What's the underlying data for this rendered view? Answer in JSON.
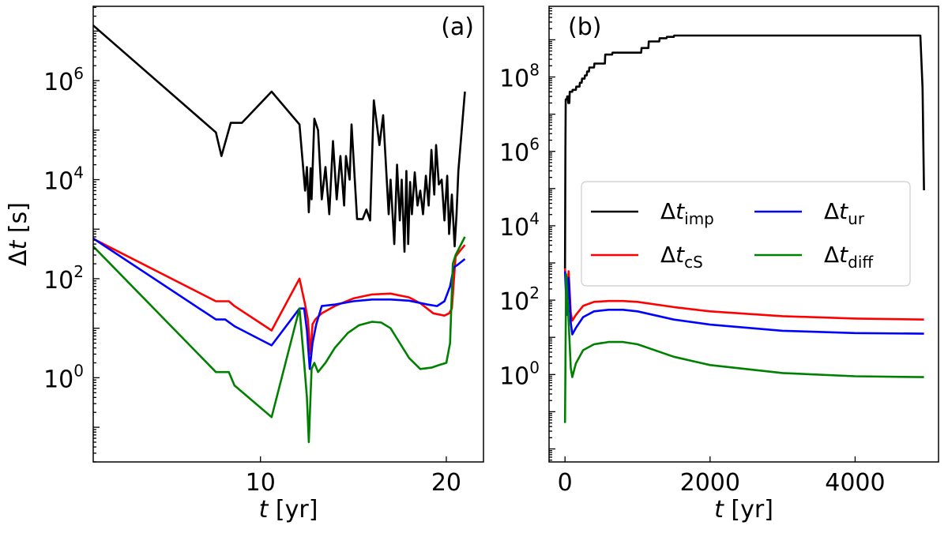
{
  "chart_data": [
    {
      "type": "line",
      "panel_label": "(a)",
      "xlabel_var": "t",
      "xlabel_unit": " [yr]",
      "ylabel_delta": "Δ",
      "ylabel_var": "t",
      "ylabel_unit": " [s]",
      "yscale": "log",
      "xlim": [
        1,
        22
      ],
      "ylim_log10": [
        -1.7,
        7.5
      ],
      "xticks": [
        10,
        20
      ],
      "yticks": [
        {
          "mantissa": "10",
          "exp": "0",
          "log": 0
        },
        {
          "mantissa": "10",
          "exp": "2",
          "log": 2
        },
        {
          "mantissa": "10",
          "exp": "4",
          "log": 4
        },
        {
          "mantissa": "10",
          "exp": "6",
          "log": 6
        }
      ],
      "series": [
        {
          "name": "imp",
          "color": "#000000",
          "x": [
            1,
            7.6,
            7.9,
            8.4,
            9.0,
            10.6,
            12.1,
            12.4,
            12.5,
            12.6,
            12.7,
            12.75,
            12.9,
            13.1,
            13.3,
            13.5,
            13.7,
            13.9,
            14.1,
            14.3,
            14.5,
            14.6,
            14.8,
            14.9,
            15.2,
            15.5,
            15.7,
            15.9,
            16.1,
            16.4,
            16.6,
            16.9,
            17.0,
            17.2,
            17.35,
            17.5,
            17.6,
            17.75,
            17.85,
            17.95,
            18.05,
            18.15,
            18.3,
            18.45,
            18.6,
            18.75,
            18.9,
            19.05,
            19.2,
            19.35,
            19.45,
            19.6,
            19.75,
            19.9,
            20.05,
            20.15,
            20.3,
            20.45,
            20.55,
            20.65,
            21.0
          ],
          "y": [
            13000000.0,
            90000.0,
            30000.0,
            140000.0,
            140000.0,
            600000.0,
            130000.0,
            6000,
            18000.0,
            2200,
            17000.0,
            4000,
            170000.0,
            100000.0,
            4000,
            18000.0,
            2000,
            60000.0,
            4000,
            30000.0,
            3000,
            30000.0,
            10000.0,
            130000.0,
            1600,
            1600,
            2500,
            1500.0,
            400000.0,
            50000.0,
            200000.0,
            2000,
            10000.0,
            500,
            20000.0,
            1500,
            10000.0,
            350,
            15000.0,
            500,
            9000,
            2000,
            14000.0,
            3000,
            6000.0,
            2000.0,
            12000.0,
            3000.0,
            40000.0,
            5000.0,
            50000.0,
            8000.0,
            10000.0,
            1500.0,
            12000.0,
            800,
            5000.0,
            450,
            2000.0,
            15000.0,
            600000.0
          ]
        },
        {
          "name": "cS",
          "color": "#ff0000",
          "x": [
            1,
            7.6,
            8.3,
            8.6,
            10.6,
            12.1,
            12.4,
            12.55,
            12.7,
            12.8,
            12.95,
            13.3,
            14.0,
            15.0,
            16.0,
            17.0,
            18.0,
            18.6,
            19.3,
            19.9,
            20.15,
            20.3,
            20.5,
            20.7,
            21.0
          ],
          "y": [
            640,
            35,
            35,
            28,
            9,
            100,
            30,
            15,
            3,
            12,
            15,
            20,
            28,
            40,
            48,
            50,
            42,
            32,
            20,
            18,
            20,
            25,
            280,
            350,
            480
          ]
        },
        {
          "name": "ur",
          "color": "#0000ff",
          "x": [
            1,
            7.6,
            8.1,
            8.6,
            10.6,
            12.1,
            12.35,
            12.5,
            12.65,
            12.8,
            13.0,
            13.3,
            14.0,
            15.0,
            16.0,
            17.0,
            18.0,
            19.0,
            19.5,
            19.9,
            20.2,
            20.4,
            20.6,
            21.0
          ],
          "y": [
            650,
            15,
            15,
            11,
            4.5,
            25,
            25,
            9,
            1.5,
            5,
            12,
            28,
            30,
            35,
            38,
            38,
            36,
            30,
            28,
            35,
            70,
            170,
            190,
            250
          ]
        },
        {
          "name": "diff",
          "color": "#008000",
          "x": [
            1,
            7.6,
            8.3,
            8.6,
            10.6,
            12.1,
            12.35,
            12.5,
            12.6,
            12.75,
            12.9,
            13.1,
            13.5,
            14.0,
            14.7,
            15.3,
            16.0,
            16.5,
            17.0,
            17.5,
            18.0,
            18.6,
            19.2,
            19.6,
            20.0,
            20.2,
            20.35,
            20.5,
            21.0
          ],
          "y": [
            450,
            1.3,
            1.3,
            0.7,
            0.16,
            25,
            2.0,
            0.4,
            0.05,
            1.5,
            2.0,
            1.3,
            2.0,
            4.0,
            8.0,
            11.5,
            13.5,
            13.0,
            10.0,
            5.0,
            2.5,
            1.5,
            1.6,
            1.8,
            2.0,
            5.0,
            200,
            300,
            700
          ]
        }
      ]
    },
    {
      "type": "line",
      "panel_label": "(b)",
      "xlabel_var": "t",
      "xlabel_unit": " [yr]",
      "yscale": "log",
      "xlim": [
        -220,
        5150
      ],
      "ylim_log10": [
        -2.35,
        9.9
      ],
      "xticks": [
        0,
        2000,
        4000
      ],
      "yticks": [
        {
          "mantissa": "10",
          "exp": "0",
          "log": 0
        },
        {
          "mantissa": "10",
          "exp": "2",
          "log": 2
        },
        {
          "mantissa": "10",
          "exp": "4",
          "log": 4
        },
        {
          "mantissa": "10",
          "exp": "6",
          "log": 6
        },
        {
          "mantissa": "10",
          "exp": "8",
          "log": 8
        }
      ],
      "series": [
        {
          "name": "imp",
          "label_base": "Δt",
          "label_sub": "imp",
          "color": "#000000",
          "x": [
            0,
            5,
            10,
            25,
            30,
            40,
            45,
            60,
            65,
            80,
            85,
            100,
            105,
            150,
            155,
            200,
            205,
            230,
            235,
            270,
            275,
            300,
            305,
            330,
            335,
            400,
            405,
            500,
            505,
            550,
            555,
            650,
            655,
            800,
            805,
            1050,
            1055,
            1150,
            1155,
            1300,
            1305,
            1400,
            1405,
            1500,
            1505,
            4900,
            4930,
            4950
          ],
          "y": [
            700,
            1000000.0,
            25000000.0,
            25000000.0,
            30000000.0,
            30000000.0,
            20000000.0,
            20000000.0,
            40000000.0,
            40000000.0,
            40000000.0,
            40000000.0,
            45000000.0,
            45000000.0,
            55000000.0,
            55000000.0,
            70000000.0,
            70000000.0,
            90000000.0,
            90000000.0,
            110000000.0,
            110000000.0,
            140000000.0,
            140000000.0,
            180000000.0,
            180000000.0,
            230000000.0,
            230000000.0,
            230000000.0,
            230000000.0,
            400000000.0,
            400000000.0,
            450000000.0,
            450000000.0,
            450000000.0,
            450000000.0,
            600000000.0,
            600000000.0,
            900000000.0,
            900000000.0,
            1100000000.0,
            1100000000.0,
            1200000000.0,
            1200000000.0,
            1300000000.0,
            1300000000.0,
            50000000.0,
            90000.0
          ]
        },
        {
          "name": "cS",
          "label_base": "Δt",
          "label_sub": "cS",
          "color": "#ff0000",
          "x": [
            0,
            25,
            50,
            80,
            100,
            150,
            250,
            400,
            600,
            800,
            1000,
            1500,
            2000,
            3000,
            4000,
            4950
          ],
          "y": [
            700,
            80,
            600,
            45,
            28,
            40,
            70,
            90,
            95,
            95,
            90,
            65,
            50,
            37,
            32,
            30
          ]
        },
        {
          "name": "ur",
          "label_base": "Δt",
          "label_sub": "ur",
          "color": "#0000ff",
          "x": [
            0,
            25,
            50,
            80,
            100,
            150,
            250,
            400,
            600,
            800,
            1000,
            1500,
            2000,
            3000,
            4000,
            4950
          ],
          "y": [
            600,
            40,
            400,
            25,
            12,
            18,
            35,
            50,
            55,
            55,
            50,
            30,
            22,
            15,
            13,
            12.5
          ]
        },
        {
          "name": "diff",
          "label_base": "Δt",
          "label_sub": "diff",
          "color": "#008000",
          "x": [
            0,
            15,
            40,
            80,
            100,
            150,
            250,
            400,
            600,
            800,
            1000,
            1500,
            2000,
            3000,
            4000,
            4950
          ],
          "y": [
            0.05,
            500,
            70,
            1.5,
            0.85,
            2.0,
            4.5,
            6.5,
            7.5,
            7.5,
            6.5,
            3.0,
            1.8,
            1.1,
            0.9,
            0.85
          ]
        }
      ]
    }
  ]
}
